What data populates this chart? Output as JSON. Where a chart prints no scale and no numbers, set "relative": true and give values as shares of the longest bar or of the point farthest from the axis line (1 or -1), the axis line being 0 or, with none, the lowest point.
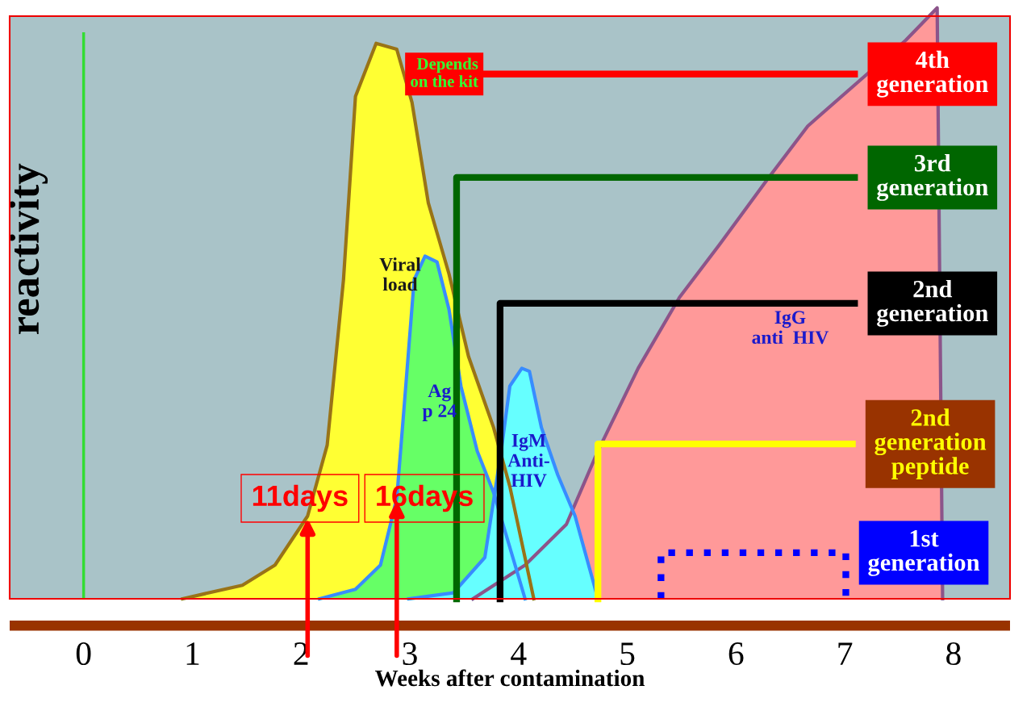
{
  "chart_data": {
    "type": "area",
    "relative": true,
    "xlabel": "Weeks after contamination",
    "ylabel": "reactivity",
    "xlim": [
      -0.68,
      8.52
    ],
    "xticks": [
      0,
      1,
      2,
      3,
      4,
      5,
      6,
      7,
      8
    ],
    "grid": false,
    "series": [
      {
        "name": "IgG\nanti  HIV",
        "color": "#ff9999",
        "x": [
          3.58,
          4.06,
          4.44,
          4.73,
          5.1,
          5.48,
          5.85,
          6.29,
          6.66,
          7.56,
          7.85,
          7.9
        ],
        "values": [
          0,
          0.057,
          0.126,
          0.25,
          0.39,
          0.51,
          0.6,
          0.71,
          0.8,
          0.945,
          1,
          0
        ]
      },
      {
        "name": "Viral\nload",
        "color": "#ffff33",
        "x": [
          0.91,
          1.46,
          1.76,
          2.06,
          2.24,
          2.39,
          2.5,
          2.69,
          2.88,
          3.02,
          3.17,
          3.36,
          3.54,
          3.77,
          3.92,
          4.14
        ],
        "values": [
          0,
          0.023,
          0.057,
          0.14,
          0.26,
          0.54,
          0.85,
          0.94,
          0.93,
          0.84,
          0.67,
          0.55,
          0.41,
          0.29,
          0.19,
          0
        ]
      },
      {
        "name": "Ag\np 24",
        "color": "#66ff66",
        "x": [
          2.17,
          2.5,
          2.73,
          2.88,
          2.95,
          3.04,
          3.14,
          3.25,
          3.36,
          3.47,
          3.62,
          3.77,
          4.06
        ],
        "values": [
          0,
          0.016,
          0.057,
          0.17,
          0.33,
          0.54,
          0.58,
          0.57,
          0.49,
          0.36,
          0.25,
          0.18,
          0
        ]
      },
      {
        "name": "IgM\nAnti-\nHIV",
        "color": "#66ffff",
        "x": [
          2.99,
          3.4,
          3.69,
          3.84,
          3.92,
          4.03,
          4.1,
          4.21,
          4.36,
          4.52,
          4.73
        ],
        "values": [
          0,
          0.01,
          0.07,
          0.25,
          0.36,
          0.39,
          0.385,
          0.29,
          0.21,
          0.14,
          0
        ]
      },
      {
        "name": "4th\ngeneration",
        "type": "line",
        "color": "#ff0000",
        "line_style": "solid",
        "x": [
          3.69,
          7.09
        ],
        "values": [
          0.888,
          0.888
        ]
      },
      {
        "name": "3rd\ngeneration",
        "type": "line",
        "color": "#006600",
        "line_style": "solid",
        "x": [
          3.43,
          3.43,
          7.09
        ],
        "values": [
          0,
          0.713,
          0.713
        ]
      },
      {
        "name": "2nd\ngeneration",
        "type": "line",
        "color": "#000000",
        "line_style": "solid",
        "x": [
          3.83,
          3.83,
          7.09
        ],
        "values": [
          0,
          0.5,
          0.5
        ]
      },
      {
        "name": "2nd\ngeneration\npeptide",
        "type": "line",
        "color": "#ffff00",
        "line_style": "solid",
        "x": [
          4.73,
          4.73,
          7.07
        ],
        "values": [
          0,
          0.262,
          0.262
        ]
      },
      {
        "name": "1st\ngeneration",
        "type": "line",
        "color": "#0000ff",
        "line_style": "dotted",
        "x": [
          5.31,
          5.31,
          7.01,
          7.01
        ],
        "values": [
          0,
          0.078,
          0.078,
          0
        ]
      }
    ],
    "ref_lines": [
      {
        "axis": "x",
        "value": 0,
        "color": "#33dd33"
      }
    ],
    "annotations": [
      {
        "text": "Depends\non the kit",
        "x": 3.69,
        "y": 0.888
      },
      {
        "text": "11days",
        "x": 2.06,
        "y": 0.14
      },
      {
        "text": "16days",
        "x": 2.88,
        "y": 0.17
      }
    ]
  }
}
